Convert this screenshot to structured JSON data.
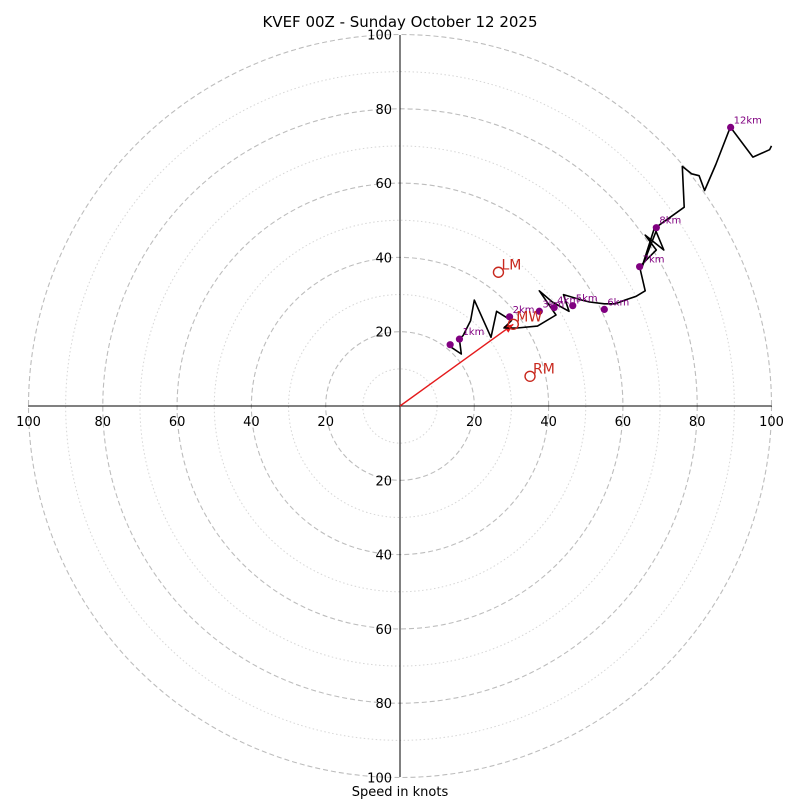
{
  "chart_data": {
    "type": "hodograph",
    "title": "KVEF 00Z - Sunday October 12 2025",
    "xlabel": "Speed in knots",
    "units": "knots",
    "ring_max": 100,
    "major_rings": [
      20,
      40,
      60,
      80,
      100
    ],
    "minor_rings": [
      10,
      30,
      50,
      70,
      90
    ],
    "tick_labels": {
      "right": [
        "20",
        "40",
        "60",
        "80",
        "100"
      ],
      "left": [
        "20",
        "40",
        "60",
        "80",
        "100"
      ],
      "up": [
        "20",
        "40",
        "60",
        "80",
        "100"
      ],
      "down": [
        "20",
        "40",
        "60",
        "80",
        "100"
      ]
    },
    "tick_values": [
      20,
      40,
      60,
      80,
      100
    ],
    "trace": {
      "u": [
        13.5,
        16.5,
        16,
        17,
        19,
        20,
        24.5,
        26,
        30,
        28,
        30,
        31.5,
        37,
        42,
        37.5,
        41,
        45.5,
        44,
        49,
        51,
        55,
        58,
        60.5,
        63.5,
        66,
        64.5,
        69,
        66,
        71,
        68.5,
        65,
        69.5,
        76.5,
        76,
        78.5,
        80.5,
        82,
        85,
        88.5,
        89,
        95,
        99.5,
        100
      ],
      "v": [
        16,
        14,
        18,
        19,
        23,
        28.5,
        18.5,
        25.5,
        23,
        21,
        21,
        21,
        21.5,
        24.5,
        31,
        28,
        25.5,
        30,
        28.5,
        28,
        27.5,
        27.5,
        28.5,
        29.5,
        31,
        37.5,
        42,
        46,
        42,
        48,
        37,
        48.5,
        53.5,
        64.5,
        62.5,
        62,
        58,
        65,
        74,
        75,
        67,
        69,
        70
      ]
    },
    "height_markers": [
      {
        "label": "",
        "u": 13.5,
        "v": 16.5
      },
      {
        "label": "1km",
        "u": 16,
        "v": 18
      },
      {
        "label": "2km",
        "u": 29.5,
        "v": 24
      },
      {
        "label": "3km",
        "u": 37.5,
        "v": 25.5
      },
      {
        "label": "4km",
        "u": 41.5,
        "v": 26.5
      },
      {
        "label": "5km",
        "u": 46.5,
        "v": 27
      },
      {
        "label": "6km",
        "u": 55,
        "v": 26
      },
      {
        "label": "7km",
        "u": 64.5,
        "v": 37.5
      },
      {
        "label": "8km",
        "u": 69,
        "v": 48
      },
      {
        "label": "12km",
        "u": 89,
        "v": 75
      }
    ],
    "storm_motion": [
      {
        "label": "LM",
        "u": 26.5,
        "v": 36
      },
      {
        "label": "MW",
        "u": 30.5,
        "v": 22
      },
      {
        "label": "RM",
        "u": 35,
        "v": 8
      }
    ],
    "mean_wind_vector": {
      "from": [
        0,
        0
      ],
      "to": [
        30.5,
        22
      ]
    },
    "colors": {
      "trace": "#000000",
      "height_marker": "#800080",
      "storm_motion": "#c8281e",
      "mean_wind_vector": "#e41a1c",
      "grid": "#bdbdbd"
    }
  }
}
